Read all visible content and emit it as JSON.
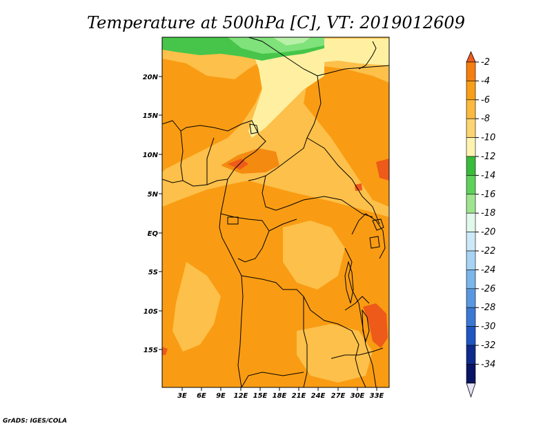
{
  "title": "Temperature at 500hPa [C], VT: 2019012609",
  "footer": "GrADS: IGES/COLA",
  "map": {
    "lat_ticks": [
      "20N",
      "15N",
      "10N",
      "5N",
      "EQ",
      "5S",
      "10S",
      "15S"
    ],
    "lon_ticks": [
      "3E",
      "6E",
      "9E",
      "12E",
      "15E",
      "18E",
      "21E",
      "24E",
      "27E",
      "30E",
      "33E"
    ],
    "palette": {
      "light_orange": "#fdc04a",
      "orange": "#f99c13",
      "pale_yellow": "#fef0a0",
      "warm": "#f48a10",
      "hot": "#ee5a19",
      "green": "#46c54a",
      "light_green": "#7fe27a",
      "pale_green": "#b8f0a8"
    }
  },
  "colorbar": {
    "labels": [
      "-2",
      "-4",
      "-6",
      "-8",
      "-10",
      "-12",
      "-14",
      "-16",
      "-18",
      "-20",
      "-22",
      "-24",
      "-26",
      "-28",
      "-30",
      "-32",
      "-34"
    ],
    "colors": [
      "#f15a22",
      "#f57e0f",
      "#f99e19",
      "#fcb93f",
      "#fdd472",
      "#fef3b1",
      "#39bb3b",
      "#5ed15b",
      "#9fe48f",
      "#e1f8ec",
      "#cde9f7",
      "#a8d3f4",
      "#7bb5ea",
      "#5a97e1",
      "#3b78d4",
      "#1f56c1",
      "#0e2a8c",
      "#0a1465",
      "#e6e2f8"
    ]
  }
}
